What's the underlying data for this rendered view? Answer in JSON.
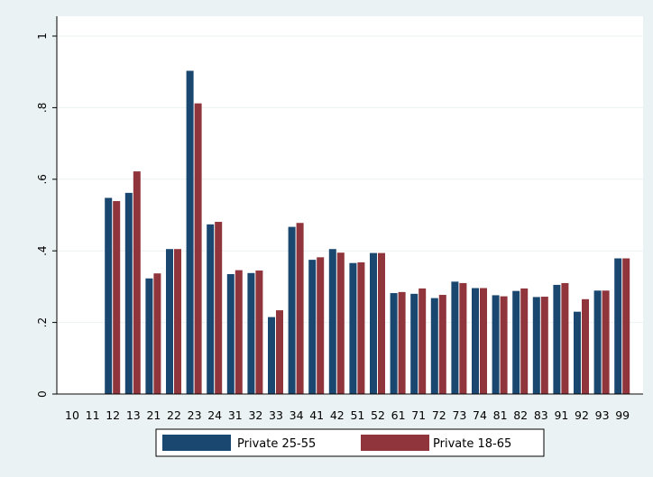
{
  "chart_data": {
    "type": "bar",
    "title": "",
    "xlabel": "",
    "ylabel": "",
    "ylim": [
      0,
      1
    ],
    "yticks": [
      0,
      0.2,
      0.4,
      0.6,
      0.8,
      1
    ],
    "ytick_labels": [
      "0",
      ".2",
      ".4",
      ".6",
      ".8",
      "1"
    ],
    "grid": true,
    "legend_position": "bottom",
    "categories": [
      "10",
      "11",
      "12",
      "13",
      "21",
      "22",
      "23",
      "24",
      "31",
      "32",
      "33",
      "34",
      "41",
      "42",
      "51",
      "52",
      "61",
      "71",
      "72",
      "73",
      "74",
      "81",
      "82",
      "83",
      "91",
      "92",
      "93",
      "99"
    ],
    "series": [
      {
        "name": "Private 25-55",
        "color": "#1a476f",
        "values": [
          null,
          null,
          0.548,
          0.562,
          0.323,
          0.405,
          0.903,
          0.474,
          0.335,
          0.338,
          0.215,
          0.467,
          0.375,
          0.405,
          0.366,
          0.394,
          0.282,
          0.28,
          0.268,
          0.314,
          0.296,
          0.276,
          0.288,
          0.271,
          0.305,
          0.23,
          0.289,
          0.379
        ]
      },
      {
        "name": "Private 18-65",
        "color": "#90353b",
        "values": [
          null,
          null,
          0.539,
          0.622,
          0.337,
          0.405,
          0.812,
          0.481,
          0.346,
          0.345,
          0.234,
          0.478,
          0.382,
          0.395,
          0.368,
          0.394,
          0.285,
          0.295,
          0.277,
          0.31,
          0.296,
          0.273,
          0.295,
          0.272,
          0.31,
          0.265,
          0.289,
          0.379
        ]
      }
    ]
  }
}
